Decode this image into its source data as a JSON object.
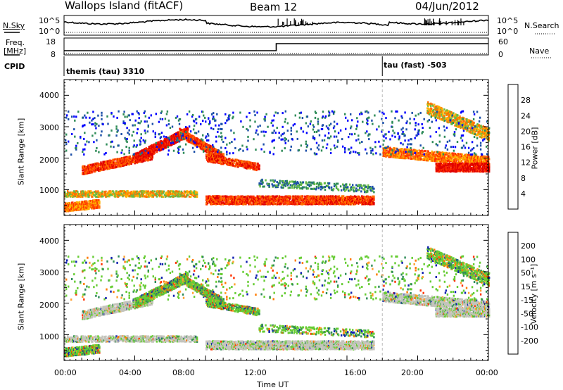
{
  "header": {
    "station": "Wallops Island (fitACF)",
    "beam": "Beam 12",
    "date": "04/Jun/2012"
  },
  "top_panels": {
    "nsky_label": "N.Sky",
    "nsky_ticks": [
      "10^5",
      "10^0"
    ],
    "nsearch_label": "N.Search",
    "nsearch_ticks": [
      "10^5",
      "10^0"
    ],
    "freq_label": "Freq.",
    "freq_unit": "[MHz]",
    "freq_ticks": [
      "18",
      "8"
    ],
    "nave_label": "Nave",
    "nave_ticks": [
      "60",
      "0"
    ],
    "cpid_label": "CPID",
    "cpid_1": "themis (tau) 3310",
    "cpid_2": "tau (fast) -503"
  },
  "chart_data": [
    {
      "type": "heatmap",
      "name": "power",
      "ylabel": "Slant Range [km]",
      "xlabel": "",
      "yticks": [
        "1000",
        "2000",
        "3000",
        "4000"
      ],
      "ylim": [
        180,
        4500
      ],
      "xlim": [
        0,
        24
      ],
      "xticks_hours": [
        0,
        4,
        8,
        12,
        16,
        20,
        24
      ],
      "colorbar": {
        "label": "Power [dB]",
        "ticks": [
          "4",
          "8",
          "12",
          "16",
          "20",
          "24",
          "28"
        ],
        "colors": [
          "#0000ff",
          "#1c4fa8",
          "#2e8b57",
          "#66bb44",
          "#ffb000",
          "#ff7000",
          "#ff3300",
          "#e00000"
        ]
      }
    },
    {
      "type": "heatmap",
      "name": "velocity",
      "ylabel": "Slant Range [km]",
      "xlabel": "Time UT",
      "yticks": [
        "1000",
        "2000",
        "3000",
        "4000"
      ],
      "ylim": [
        180,
        4500
      ],
      "xlim": [
        0,
        24
      ],
      "xticks": [
        "00:00",
        "04:00",
        "08:00",
        "12:00",
        "16:00",
        "20:00",
        "00:00"
      ],
      "xticks_hours": [
        0,
        4,
        8,
        12,
        16,
        20,
        24
      ],
      "colorbar": {
        "label": "Velocity [m s⁻¹]",
        "ticks": [
          "200",
          "100",
          "50",
          "15",
          "-15",
          "-50",
          "-100",
          "-200"
        ],
        "colors": [
          "#1020b0",
          "#2d5fa0",
          "#2e8b57",
          "#66cc33",
          "#c0c0b8",
          "#ffa030",
          "#ff7a00",
          "#ff3000",
          "#e00000"
        ]
      }
    }
  ],
  "colors": {
    "ground_scatter": "#c4c4bc",
    "axis": "#000000"
  }
}
